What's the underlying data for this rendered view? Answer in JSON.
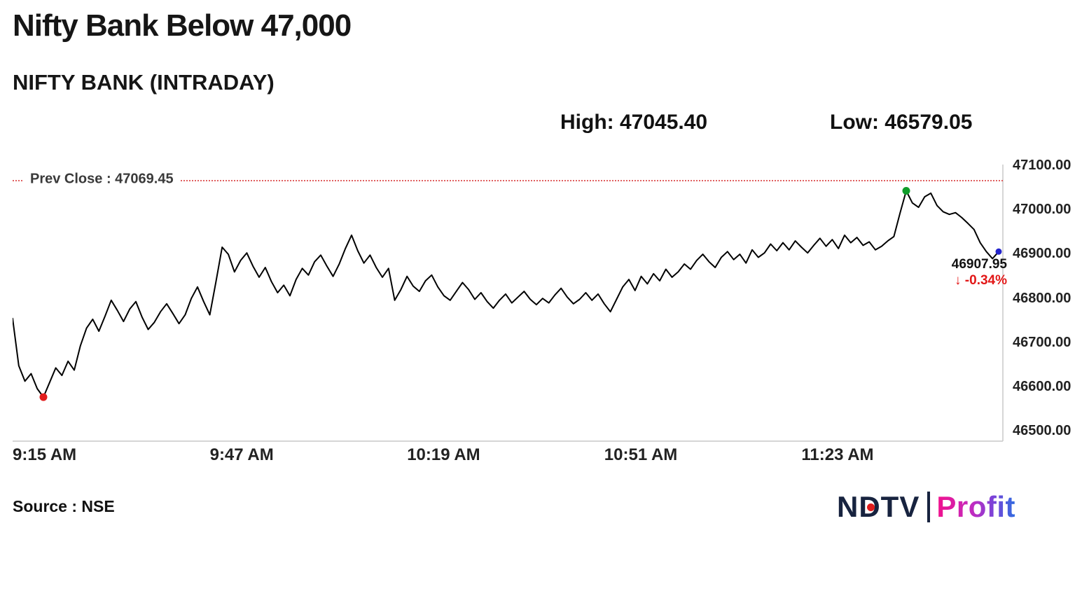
{
  "header": {
    "title": "Nifty Bank Below 47,000",
    "subtitle": "NIFTY BANK (INTRADAY)",
    "high_label": "High: 47045.40",
    "low_label": "Low: 46579.05"
  },
  "chart_data": {
    "type": "line",
    "title": "NIFTY BANK (INTRADAY)",
    "line_color": "#000000",
    "prev_close_color": "#e06060",
    "x_axis": {
      "start_time": "9:15 AM",
      "minutes_per_point": 1,
      "tick_labels": [
        "9:15 AM",
        "9:47 AM",
        "10:19 AM",
        "10:51 AM",
        "11:23 AM"
      ],
      "tick_indexes": [
        0,
        32,
        64,
        96,
        128
      ]
    },
    "y_axis": {
      "min": 46500,
      "max": 47100,
      "tick_labels": [
        "47100.00",
        "47000.00",
        "46900.00",
        "46800.00",
        "46700.00",
        "46600.00",
        "46500.00"
      ]
    },
    "prev_close": {
      "label": "Prev Close : 47069.45",
      "value": 47069.45
    },
    "high": 47045.4,
    "low": 46579.05,
    "last": {
      "value": 46907.95,
      "value_label": "46907.95",
      "change_label": "↓ -0.34%",
      "change_pct": -0.34
    },
    "values": [
      46757,
      46650,
      46615,
      46632,
      46598,
      46579.05,
      46612,
      46645,
      46628,
      46660,
      46640,
      46695,
      46735,
      46755,
      46728,
      46762,
      46798,
      46775,
      46750,
      46778,
      46795,
      46760,
      46732,
      46748,
      46772,
      46790,
      46768,
      46745,
      46765,
      46802,
      46828,
      46795,
      46765,
      46840,
      46918,
      46902,
      46862,
      46888,
      46905,
      46875,
      46850,
      46872,
      46840,
      46815,
      46832,
      46808,
      46845,
      46870,
      46855,
      46885,
      46900,
      46875,
      46852,
      46880,
      46915,
      46945,
      46910,
      46882,
      46900,
      46872,
      46850,
      46870,
      46798,
      46822,
      46852,
      46830,
      46818,
      46842,
      46855,
      46828,
      46808,
      46798,
      46818,
      46838,
      46822,
      46800,
      46815,
      46795,
      46780,
      46798,
      46812,
      46792,
      46805,
      46818,
      46800,
      46788,
      46802,
      46792,
      46810,
      46825,
      46805,
      46790,
      46800,
      46815,
      46798,
      46812,
      46790,
      46772,
      46800,
      46828,
      46845,
      46820,
      46852,
      46835,
      46858,
      46842,
      46868,
      46850,
      46862,
      46880,
      46868,
      46888,
      46902,
      46885,
      46872,
      46895,
      46908,
      46890,
      46902,
      46882,
      46912,
      46895,
      46905,
      46925,
      46910,
      46928,
      46912,
      46932,
      46918,
      46905,
      46922,
      46938,
      46920,
      46935,
      46915,
      46945,
      46928,
      46940,
      46922,
      46930,
      46912,
      46920,
      46932,
      46942,
      46995,
      47045.4,
      47018,
      47008,
      47032,
      47040,
      47012,
      46998,
      46992,
      46996,
      46985,
      46972,
      46958,
      46928,
      46908,
      46892,
      46907.95
    ],
    "markers": [
      {
        "index": 5,
        "color": "#e11d1d",
        "name": "low-marker"
      },
      {
        "index": 145,
        "color": "#0f9d2a",
        "name": "high-marker"
      },
      {
        "index": 160,
        "color": "#2424cc",
        "name": "last-marker"
      }
    ]
  },
  "footer": {
    "source": "Source : NSE",
    "logo": {
      "ndtv": "NDTV",
      "profit": "Profit"
    }
  }
}
